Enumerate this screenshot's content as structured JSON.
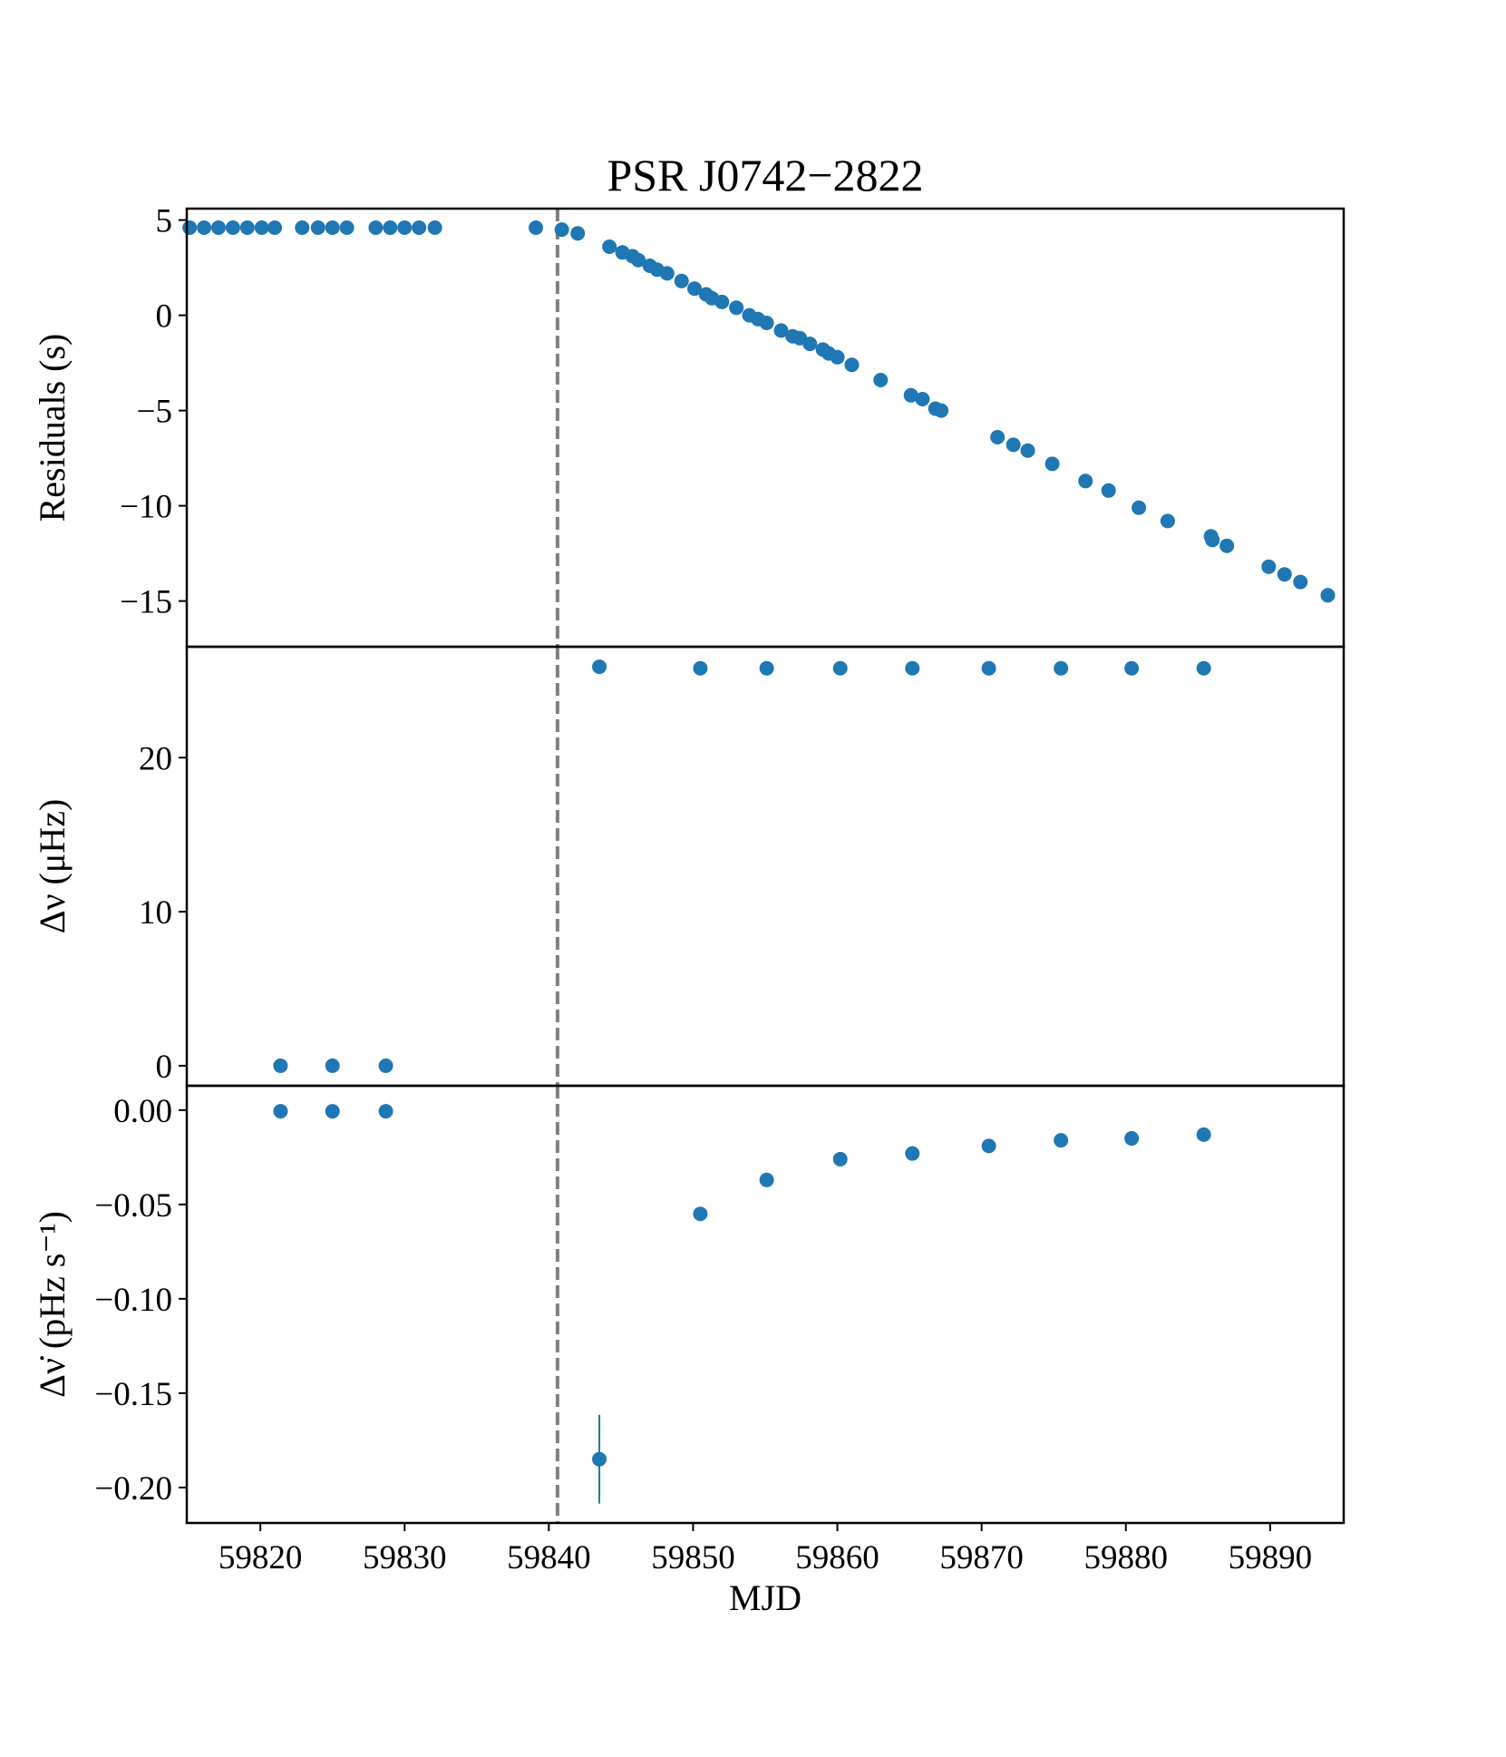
{
  "chart_data": [
    {
      "type": "scatter",
      "title": "PSR J0742−2822",
      "ylabel": "Residuals (s)",
      "color": "#1f77b4",
      "vline": 59840.6,
      "xlim": [
        59814.9,
        59895.1
      ],
      "ylim": [
        -17.4,
        5.6
      ],
      "yticks": [
        {
          "value": -15,
          "label": "−15"
        },
        {
          "value": -10,
          "label": "−10"
        },
        {
          "value": -5,
          "label": "−5"
        },
        0,
        5
      ],
      "x": [
        59815.1,
        59816.1,
        59817.1,
        59818.1,
        59819.1,
        59820.1,
        59821.0,
        59822.9,
        59824.0,
        59825.0,
        59826.0,
        59828.0,
        59829.0,
        59830.0,
        59831.0,
        59832.1,
        59839.1,
        59840.9,
        59842.0,
        59844.2,
        59845.1,
        59845.8,
        59846.2,
        59847.0,
        59847.5,
        59848.2,
        59849.2,
        59850.1,
        59850.9,
        59851.3,
        59852.0,
        59853.0,
        59853.9,
        59854.5,
        59855.1,
        59856.1,
        59856.9,
        59857.4,
        59858.1,
        59859.0,
        59859.4,
        59860.0,
        59861.0,
        59863.0,
        59865.1,
        59865.9,
        59866.8,
        59867.2,
        59871.1,
        59872.2,
        59873.2,
        59874.9,
        59877.2,
        59878.8,
        59880.9,
        59882.9,
        59885.9,
        59886.0,
        59887.0,
        59889.9,
        59891.0,
        59892.1,
        59894.0
      ],
      "y": [
        4.6,
        4.6,
        4.6,
        4.6,
        4.6,
        4.6,
        4.6,
        4.6,
        4.6,
        4.6,
        4.6,
        4.6,
        4.6,
        4.6,
        4.6,
        4.6,
        4.6,
        4.5,
        4.3,
        3.6,
        3.3,
        3.1,
        2.9,
        2.6,
        2.4,
        2.2,
        1.8,
        1.4,
        1.1,
        0.9,
        0.7,
        0.4,
        0.0,
        -0.2,
        -0.4,
        -0.8,
        -1.1,
        -1.2,
        -1.5,
        -1.8,
        -2.0,
        -2.2,
        -2.6,
        -3.4,
        -4.2,
        -4.4,
        -4.9,
        -5.0,
        -6.4,
        -6.8,
        -7.1,
        -7.8,
        -8.7,
        -9.2,
        -10.1,
        -10.8,
        -11.6,
        -11.8,
        -12.1,
        -13.2,
        -13.6,
        -14.0,
        -14.7
      ]
    },
    {
      "type": "scatter",
      "ylabel": "Δν (μHz)",
      "color": "#1f77b4",
      "vline": 59840.6,
      "xlim": [
        59814.9,
        59895.1
      ],
      "ylim": [
        -1.3,
        27.2
      ],
      "yticks": [
        0,
        10,
        20
      ],
      "x": [
        59821.4,
        59825.0,
        59828.7,
        59843.5,
        59850.5,
        59855.1,
        59860.2,
        59865.2,
        59870.5,
        59875.5,
        59880.4,
        59885.4
      ],
      "y": [
        0,
        0,
        0,
        25.9,
        25.8,
        25.8,
        25.8,
        25.8,
        25.8,
        25.8,
        25.8,
        25.8
      ]
    },
    {
      "type": "scatter",
      "ylabel": "Δν̇ (pHz s⁻¹)",
      "xlabel": "MJD",
      "color": "#1f77b4",
      "vline": 59840.6,
      "xlim": [
        59814.9,
        59895.1
      ],
      "ylim": [
        -0.2188,
        0.0129
      ],
      "xticks": [
        59820,
        59830,
        59840,
        59850,
        59860,
        59870,
        59880,
        59890
      ],
      "yticks": [
        {
          "value": -0.2,
          "label": "−0.20"
        },
        {
          "value": -0.15,
          "label": "−0.15"
        },
        {
          "value": -0.1,
          "label": "−0.10"
        },
        {
          "value": -0.05,
          "label": "−0.05"
        },
        {
          "value": 0,
          "label": "0.00"
        }
      ],
      "x": [
        59821.4,
        59825.0,
        59828.7,
        59843.5,
        59850.5,
        59855.1,
        59860.2,
        59865.2,
        59870.5,
        59875.5,
        59880.4,
        59885.4
      ],
      "y": [
        -0.0006,
        -0.0006,
        -0.0006,
        -0.185,
        -0.055,
        -0.037,
        -0.026,
        -0.023,
        -0.019,
        -0.016,
        -0.015,
        -0.013
      ],
      "errors": [
        null,
        null,
        null,
        0.0235,
        null,
        null,
        null,
        null,
        null,
        null,
        null,
        null
      ]
    }
  ]
}
